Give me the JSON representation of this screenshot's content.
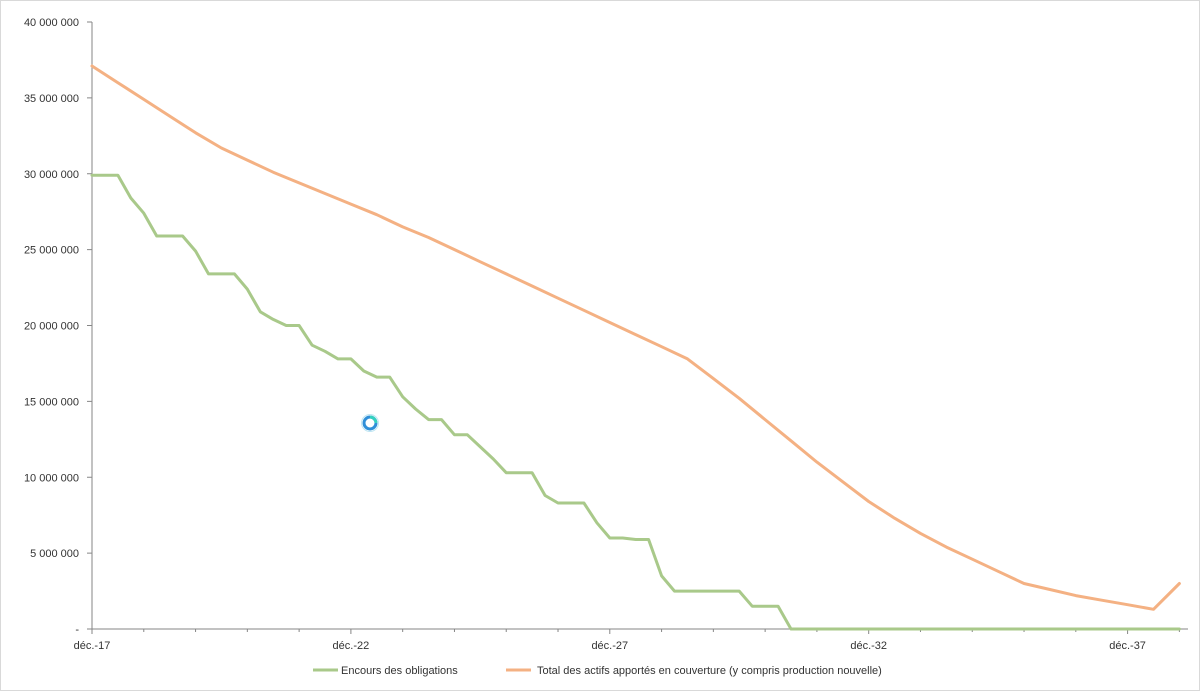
{
  "chart_data": {
    "type": "line",
    "title": "",
    "xlabel": "",
    "ylabel": "",
    "x_ticks": [
      "déc.-17",
      "déc.-22",
      "déc.-27",
      "déc.-32",
      "déc.-37"
    ],
    "y_ticks": [
      "-",
      "5 000 000",
      "10 000 000",
      "15 000 000",
      "20 000 000",
      "25 000 000",
      "30 000 000",
      "35 000 000",
      "40 000 000"
    ],
    "ylim": [
      0,
      40000000
    ],
    "xlim": [
      "2017-12",
      "2039-02"
    ],
    "grid": false,
    "legend_position": "bottom",
    "series": [
      {
        "name": "Encours des obligations",
        "color": "#a9c98a",
        "x": [
          "2017-12",
          "2018-02",
          "2018-06",
          "2018-09",
          "2018-12",
          "2019-03",
          "2019-06",
          "2019-09",
          "2019-12",
          "2020-03",
          "2020-06",
          "2020-09",
          "2020-12",
          "2021-03",
          "2021-06",
          "2021-09",
          "2021-12",
          "2022-03",
          "2022-06",
          "2022-09",
          "2022-12",
          "2023-03",
          "2023-06",
          "2023-09",
          "2023-12",
          "2024-03",
          "2024-06",
          "2024-09",
          "2024-12",
          "2025-03",
          "2025-06",
          "2025-09",
          "2025-12",
          "2026-03",
          "2026-06",
          "2026-09",
          "2026-12",
          "2027-03",
          "2027-06",
          "2027-09",
          "2027-12",
          "2028-03",
          "2028-06",
          "2028-09",
          "2028-12",
          "2029-03",
          "2029-06",
          "2029-09",
          "2029-12",
          "2030-03",
          "2030-06",
          "2030-09",
          "2030-12",
          "2031-03",
          "2031-06",
          "2032-12",
          "2035-12",
          "2038-12"
        ],
        "values": [
          29900000,
          29900000,
          29900000,
          28400000,
          27400000,
          25900000,
          25900000,
          25900000,
          24900000,
          23400000,
          23400000,
          23400000,
          22400000,
          20900000,
          20400000,
          20000000,
          20000000,
          18700000,
          18300000,
          17800000,
          17800000,
          17000000,
          16600000,
          16600000,
          15300000,
          14500000,
          13800000,
          13800000,
          12800000,
          12800000,
          12000000,
          11200000,
          10300000,
          10300000,
          10300000,
          8800000,
          8300000,
          8300000,
          8300000,
          7000000,
          6000000,
          6000000,
          5900000,
          5900000,
          3500000,
          2500000,
          2500000,
          2500000,
          2500000,
          2500000,
          2500000,
          1500000,
          1500000,
          1500000,
          0,
          0,
          0,
          0
        ]
      },
      {
        "name": "Total des actifs apportés en couverture (y compris production nouvelle)",
        "color": "#f4b183",
        "x": [
          "2017-12",
          "2018-06",
          "2018-12",
          "2019-06",
          "2019-12",
          "2020-06",
          "2020-12",
          "2021-06",
          "2021-12",
          "2022-06",
          "2022-12",
          "2023-06",
          "2023-12",
          "2024-06",
          "2024-12",
          "2025-06",
          "2025-12",
          "2026-06",
          "2026-12",
          "2027-06",
          "2027-12",
          "2028-06",
          "2028-12",
          "2029-06",
          "2029-12",
          "2030-06",
          "2030-12",
          "2031-06",
          "2031-12",
          "2032-06",
          "2032-12",
          "2033-06",
          "2033-12",
          "2034-06",
          "2034-12",
          "2035-06",
          "2035-12",
          "2036-06",
          "2036-12",
          "2037-06",
          "2037-12",
          "2038-06",
          "2038-12"
        ],
        "values": [
          37100000,
          36000000,
          34900000,
          33800000,
          32700000,
          31700000,
          30900000,
          30100000,
          29400000,
          28700000,
          28000000,
          27300000,
          26500000,
          25800000,
          25000000,
          24200000,
          23400000,
          22600000,
          21800000,
          21000000,
          20200000,
          19400000,
          18600000,
          17800000,
          16500000,
          15200000,
          13800000,
          12400000,
          11000000,
          9700000,
          8400000,
          7300000,
          6300000,
          5400000,
          4600000,
          3800000,
          3000000,
          2600000,
          2200000,
          1900000,
          1600000,
          1300000,
          3000000
        ]
      }
    ]
  }
}
